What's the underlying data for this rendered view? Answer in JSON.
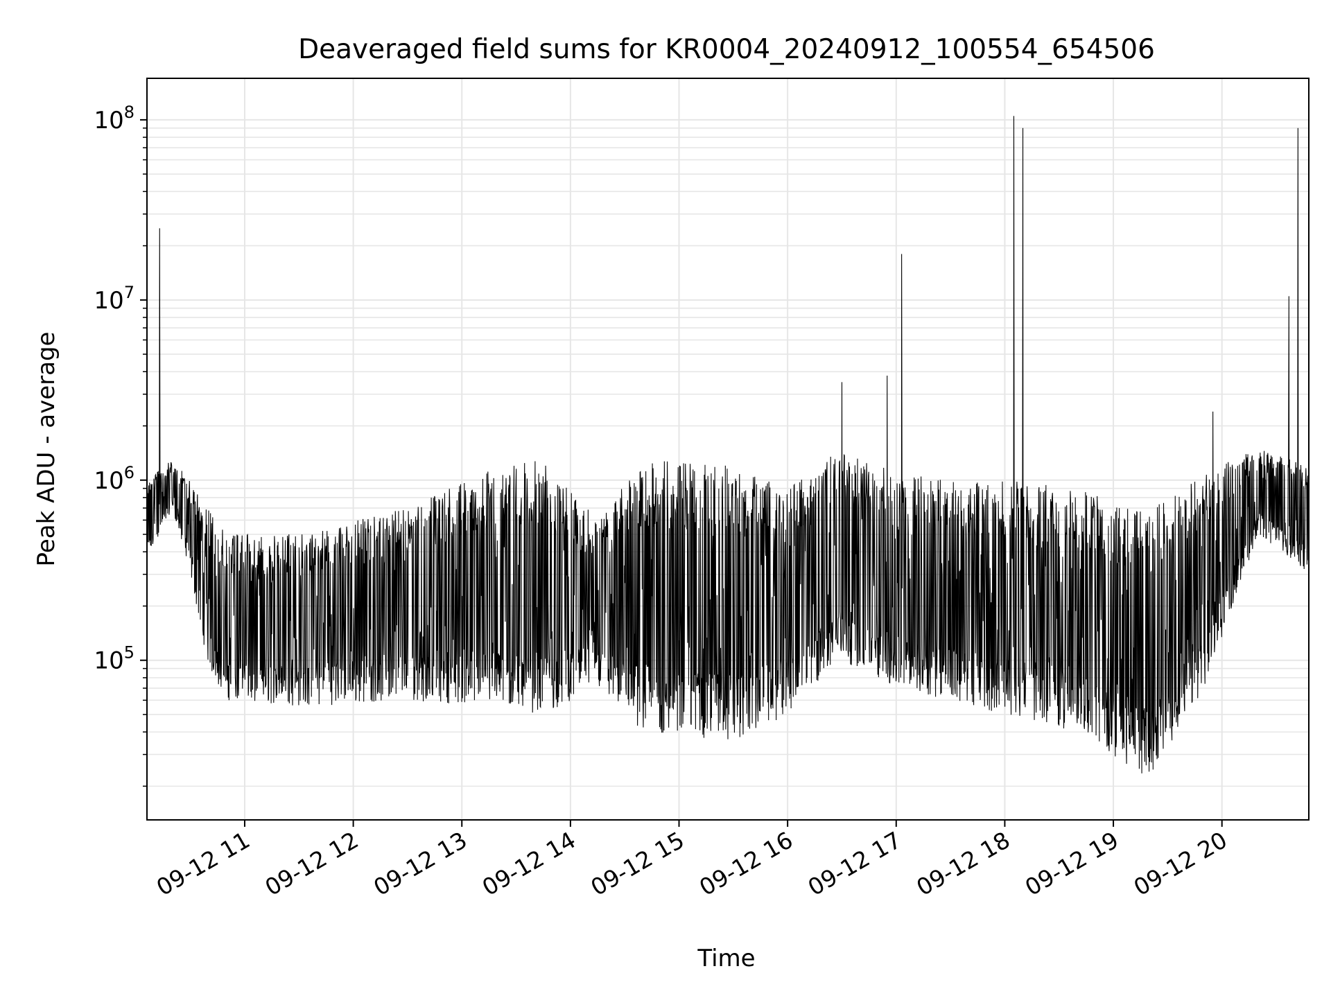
{
  "chart_data": {
    "type": "line",
    "title": "Deaveraged field sums for KR0004_20240912_100554_654506",
    "xlabel": "Time",
    "ylabel": "Peak ADU - average",
    "yscale": "log",
    "ylim": [
      13000,
      170000000
    ],
    "xlim": [
      "2024-09-12 10:06",
      "2024-09-12 20:48"
    ],
    "grid": true,
    "line_color": "#000000",
    "grid_color": "#e6e6e6",
    "x_ticks": [
      {
        "value": "2024-09-12 11:00",
        "label": "09-12 11"
      },
      {
        "value": "2024-09-12 12:00",
        "label": "09-12 12"
      },
      {
        "value": "2024-09-12 13:00",
        "label": "09-12 13"
      },
      {
        "value": "2024-09-12 14:00",
        "label": "09-12 14"
      },
      {
        "value": "2024-09-12 15:00",
        "label": "09-12 15"
      },
      {
        "value": "2024-09-12 16:00",
        "label": "09-12 16"
      },
      {
        "value": "2024-09-12 17:00",
        "label": "09-12 17"
      },
      {
        "value": "2024-09-12 18:00",
        "label": "09-12 18"
      },
      {
        "value": "2024-09-12 19:00",
        "label": "09-12 19"
      },
      {
        "value": "2024-09-12 20:00",
        "label": "09-12 20"
      }
    ],
    "y_ticks": [
      {
        "value": 100000,
        "base": "10",
        "exp": "5"
      },
      {
        "value": 1000000,
        "base": "10",
        "exp": "6"
      },
      {
        "value": 10000000,
        "base": "10",
        "exp": "7"
      },
      {
        "value": 100000000,
        "base": "10",
        "exp": "8"
      }
    ],
    "series": [
      {
        "envelope": [
          {
            "t": "2024-09-12 10:06",
            "low": 350000,
            "high": 1000000
          },
          {
            "t": "2024-09-12 10:20",
            "low": 700000,
            "high": 1300000
          },
          {
            "t": "2024-09-12 10:30",
            "low": 300000,
            "high": 1000000
          },
          {
            "t": "2024-09-12 10:40",
            "low": 90000,
            "high": 700000
          },
          {
            "t": "2024-09-12 10:50",
            "low": 60000,
            "high": 500000
          },
          {
            "t": "2024-09-12 11:30",
            "low": 55000,
            "high": 500000
          },
          {
            "t": "2024-09-12 12:30",
            "low": 60000,
            "high": 700000
          },
          {
            "t": "2024-09-12 13:20",
            "low": 55000,
            "high": 1200000
          },
          {
            "t": "2024-09-12 13:45",
            "low": 50000,
            "high": 1300000
          },
          {
            "t": "2024-09-12 14:15",
            "low": 70000,
            "high": 600000
          },
          {
            "t": "2024-09-12 14:40",
            "low": 40000,
            "high": 1300000
          },
          {
            "t": "2024-09-12 15:30",
            "low": 35000,
            "high": 1200000
          },
          {
            "t": "2024-09-12 16:00",
            "low": 50000,
            "high": 900000
          },
          {
            "t": "2024-09-12 16:30",
            "low": 100000,
            "high": 1500000
          },
          {
            "t": "2024-09-12 17:00",
            "low": 70000,
            "high": 1100000
          },
          {
            "t": "2024-09-12 17:30",
            "low": 60000,
            "high": 1000000
          },
          {
            "t": "2024-09-12 18:00",
            "low": 50000,
            "high": 1000000
          },
          {
            "t": "2024-09-12 18:40",
            "low": 40000,
            "high": 900000
          },
          {
            "t": "2024-09-12 19:20",
            "low": 22000,
            "high": 700000
          },
          {
            "t": "2024-09-12 19:50",
            "low": 70000,
            "high": 1100000
          },
          {
            "t": "2024-09-12 20:20",
            "low": 500000,
            "high": 1500000
          },
          {
            "t": "2024-09-12 20:48",
            "low": 300000,
            "high": 1200000
          }
        ],
        "spikes": [
          {
            "t": "2024-09-12 10:13",
            "value": 25000000
          },
          {
            "t": "2024-09-12 16:30",
            "value": 3500000
          },
          {
            "t": "2024-09-12 16:55",
            "value": 3800000
          },
          {
            "t": "2024-09-12 17:03",
            "value": 18000000
          },
          {
            "t": "2024-09-12 18:05",
            "value": 105000000
          },
          {
            "t": "2024-09-12 18:10",
            "value": 90000000
          },
          {
            "t": "2024-09-12 19:55",
            "value": 2400000
          },
          {
            "t": "2024-09-12 20:37",
            "value": 10500000
          },
          {
            "t": "2024-09-12 20:42",
            "value": 90000000
          }
        ]
      }
    ]
  }
}
